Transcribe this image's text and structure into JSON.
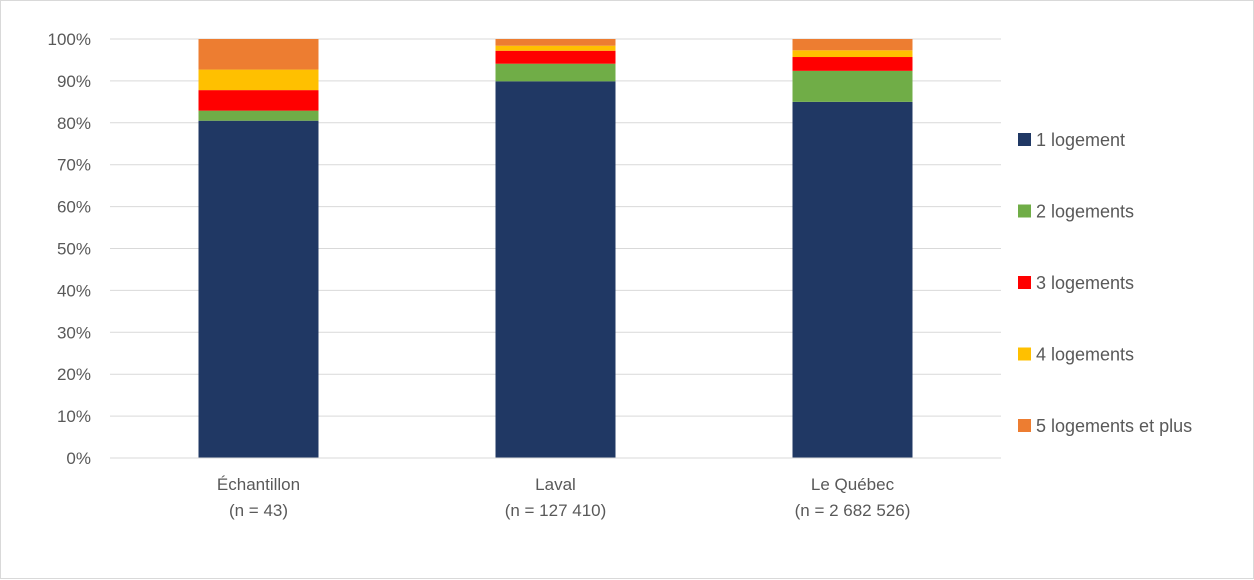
{
  "chart_data": {
    "type": "bar",
    "stacked": true,
    "percent": true,
    "categories": [
      [
        "Échantillon",
        "(n = 43)"
      ],
      [
        "Laval",
        "(n = 127 410)"
      ],
      [
        "Le Québec",
        "(n = 2 682 526)"
      ]
    ],
    "series": [
      {
        "name": "1 logement",
        "color": "#203864",
        "values": [
          80.5,
          89.9,
          85.0
        ]
      },
      {
        "name": "2 logements",
        "color": "#70ad47",
        "values": [
          2.4,
          4.2,
          7.4
        ]
      },
      {
        "name": "3 logements",
        "color": "#ff0000",
        "values": [
          4.9,
          3.1,
          3.3
        ]
      },
      {
        "name": "4 logements",
        "color": "#ffc000",
        "values": [
          4.9,
          1.2,
          1.6
        ]
      },
      {
        "name": "5 logements et plus",
        "color": "#ed7d31",
        "values": [
          7.3,
          1.6,
          2.7
        ]
      }
    ],
    "yticks": [
      "0%",
      "10%",
      "20%",
      "30%",
      "40%",
      "50%",
      "60%",
      "70%",
      "80%",
      "90%",
      "100%"
    ],
    "ylim": [
      0,
      100
    ],
    "grid": true,
    "legend_position": "right"
  }
}
